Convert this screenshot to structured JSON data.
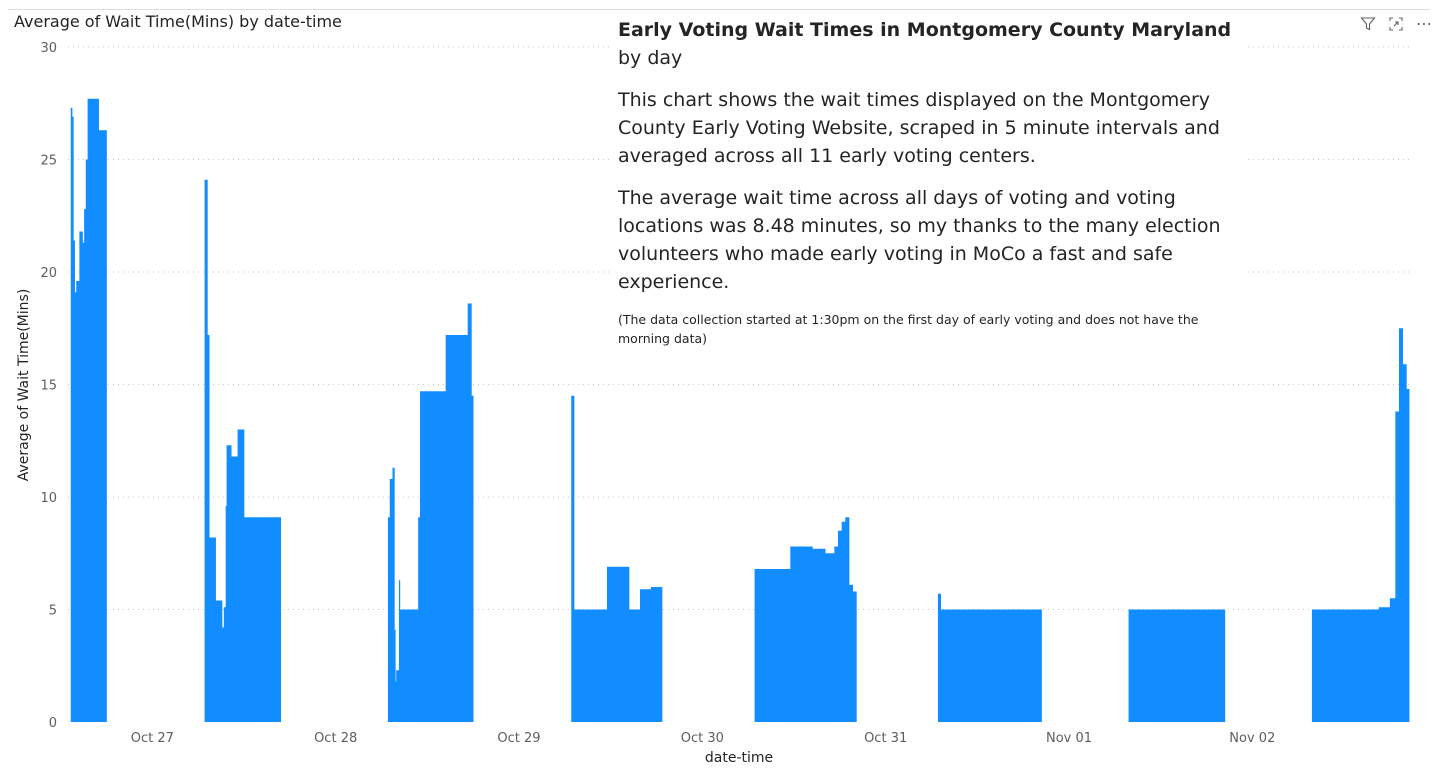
{
  "textbox": {
    "title_bold": "Early Voting Wait Times in Montgomery County Maryland",
    "title_rest": " by day",
    "para1": "This chart shows the wait times displayed on the Montgomery County Early Voting Website, scraped in 5 minute intervals and averaged across all 11 early voting centers.",
    "para2": "The average wait time across all days of voting and voting locations was 8.48 minutes, so my thanks to the many election volunteers who made early voting in MoCo a fast and safe experience.",
    "note": "(The data collection started at 1:30pm on the first day of early voting and does not have the morning data)"
  },
  "toolbar": {
    "filter_icon": "filter-icon",
    "focus_icon": "focus-mode-icon",
    "more_label": "⋯"
  },
  "colors": {
    "bar": "#118dff",
    "grid": "#c8c6c4",
    "axis_text": "#605e5c"
  },
  "chart_data": {
    "type": "bar",
    "title": "Average of Wait Time(Mins) by date-time",
    "xlabel": "date-time",
    "ylabel": "Average of Wait Time(Mins)",
    "ylim": [
      0,
      30
    ],
    "yticks": [
      0,
      5,
      10,
      15,
      20,
      25,
      30
    ],
    "grid": true,
    "x_unit": "days since Oct 26 00:00",
    "xlim": [
      26.54,
      33.86
    ],
    "xticks": [
      {
        "label": "Oct 27",
        "value": 1.0
      },
      {
        "label": "Oct 28",
        "value": 2.0
      },
      {
        "label": "Oct 29",
        "value": 3.0
      },
      {
        "label": "Oct 30",
        "value": 4.0
      },
      {
        "label": "Oct 31",
        "value": 5.0
      },
      {
        "label": "Nov 01",
        "value": 6.0
      },
      {
        "label": "Nov 02",
        "value": 7.0
      }
    ],
    "series": [
      {
        "name": "Average of Wait Time(Mins)",
        "points": [
          [
            0.555,
            27.3
          ],
          [
            0.562,
            26.9
          ],
          [
            0.569,
            21.4
          ],
          [
            0.576,
            19.1
          ],
          [
            0.585,
            19.6
          ],
          [
            0.602,
            21.8
          ],
          [
            0.619,
            21.3
          ],
          [
            0.628,
            22.8
          ],
          [
            0.637,
            25.0
          ],
          [
            0.647,
            27.7
          ],
          [
            0.707,
            26.3
          ],
          [
            0.75,
            0
          ],
          [
            1.285,
            24.1
          ],
          [
            1.3,
            17.2
          ],
          [
            1.31,
            8.2
          ],
          [
            1.345,
            5.4
          ],
          [
            1.38,
            4.2
          ],
          [
            1.39,
            5.1
          ],
          [
            1.4,
            9.6
          ],
          [
            1.405,
            12.3
          ],
          [
            1.43,
            11.8
          ],
          [
            1.465,
            13.0
          ],
          [
            1.5,
            9.1
          ],
          [
            1.7,
            0
          ],
          [
            2.285,
            9.1
          ],
          [
            2.295,
            10.8
          ],
          [
            2.31,
            11.3
          ],
          [
            2.32,
            4.1
          ],
          [
            2.325,
            1.8
          ],
          [
            2.33,
            2.3
          ],
          [
            2.345,
            6.3
          ],
          [
            2.35,
            5.0
          ],
          [
            2.45,
            9.1
          ],
          [
            2.46,
            14.7
          ],
          [
            2.6,
            17.2
          ],
          [
            2.72,
            18.6
          ],
          [
            2.74,
            14.5
          ],
          [
            2.75,
            0
          ],
          [
            3.285,
            14.5
          ],
          [
            3.3,
            5.0
          ],
          [
            3.48,
            6.9
          ],
          [
            3.6,
            5.0
          ],
          [
            3.66,
            5.9
          ],
          [
            3.72,
            6.0
          ],
          [
            3.78,
            0
          ],
          [
            4.285,
            6.8
          ],
          [
            4.48,
            7.8
          ],
          [
            4.6,
            7.7
          ],
          [
            4.67,
            7.5
          ],
          [
            4.72,
            7.8
          ],
          [
            4.74,
            8.5
          ],
          [
            4.76,
            8.9
          ],
          [
            4.78,
            9.1
          ],
          [
            4.8,
            6.1
          ],
          [
            4.82,
            5.8
          ],
          [
            4.84,
            0
          ],
          [
            5.285,
            5.7
          ],
          [
            5.3,
            5.0
          ],
          [
            5.85,
            0
          ],
          [
            6.325,
            5.0
          ],
          [
            6.85,
            0
          ],
          [
            7.325,
            5.0
          ],
          [
            7.69,
            5.1
          ],
          [
            7.75,
            5.5
          ],
          [
            7.78,
            13.8
          ],
          [
            7.8,
            17.5
          ],
          [
            7.82,
            15.9
          ],
          [
            7.84,
            14.8
          ],
          [
            7.855,
            0
          ]
        ]
      }
    ]
  }
}
